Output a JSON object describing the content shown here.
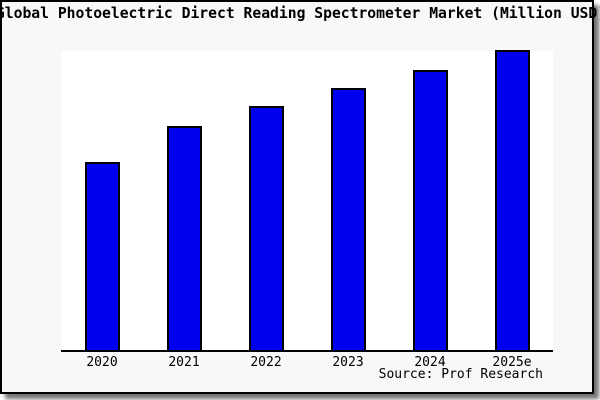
{
  "title": "Global Photoelectric Direct Reading Spectrometer Market (Million USD)",
  "source_label": "Source: Prof Research",
  "colors": {
    "bar_fill": "#0000ee",
    "bar_edge": "#000000",
    "figure_bg": "#f8f8f8",
    "plot_bg": "#ffffff",
    "frame_border": "#000000"
  },
  "chart_data": {
    "type": "bar",
    "title": "Global Photoelectric Direct Reading Spectrometer Market (Million USD)",
    "categories": [
      "2020",
      "2021",
      "2022",
      "2023",
      "2024",
      "2025e"
    ],
    "values": [
      62.7,
      74.8,
      81.3,
      87.3,
      93.3,
      100
    ],
    "value_scale": "relative units (2025e = 100); y-axis has no tick labels",
    "xlabel": "",
    "ylabel": "",
    "ylim": [
      0,
      100
    ],
    "gridlines": false,
    "legend": null,
    "source": "Source: Prof Research"
  }
}
